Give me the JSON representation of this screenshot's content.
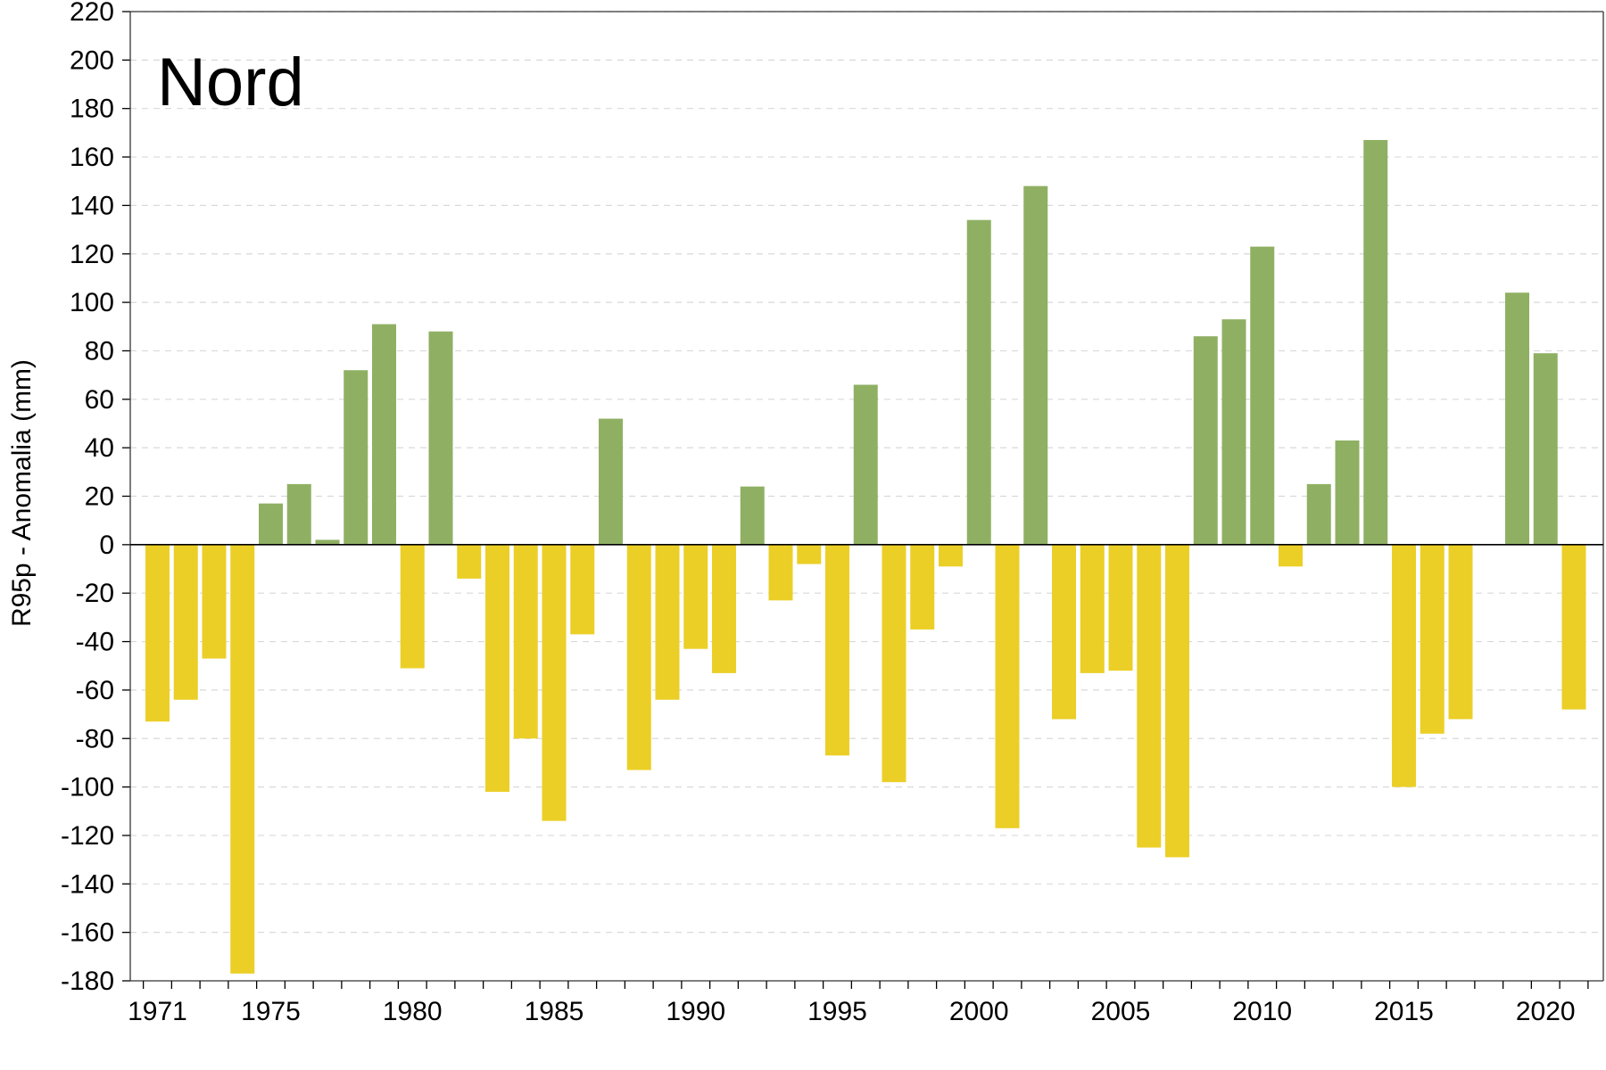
{
  "chart_data": {
    "type": "bar",
    "title": "Nord",
    "xlabel": "",
    "ylabel": "R95p - Anomalia (mm)",
    "ylim": [
      -180,
      220
    ],
    "yticks": [
      -180,
      -160,
      -140,
      -120,
      -100,
      -80,
      -60,
      -40,
      -20,
      0,
      20,
      40,
      60,
      80,
      100,
      120,
      140,
      160,
      180,
      200,
      220
    ],
    "xtick_labels": [
      "1971",
      "1975",
      "1980",
      "1985",
      "1990",
      "1995",
      "2000",
      "2005",
      "2010",
      "2015",
      "2020"
    ],
    "grid": "horizontal dashed",
    "legend": "none",
    "colors": {
      "positive": "#8fb063",
      "negative": "#ebcf27"
    },
    "categories": [
      1971,
      1972,
      1973,
      1974,
      1975,
      1976,
      1977,
      1978,
      1979,
      1980,
      1981,
      1982,
      1983,
      1984,
      1985,
      1986,
      1987,
      1988,
      1989,
      1990,
      1991,
      1992,
      1993,
      1994,
      1995,
      1996,
      1997,
      1998,
      1999,
      2000,
      2001,
      2002,
      2003,
      2004,
      2005,
      2006,
      2007,
      2008,
      2009,
      2010,
      2011,
      2012,
      2013,
      2014,
      2015,
      2016,
      2017,
      2018,
      2019,
      2020,
      2021
    ],
    "values": [
      -73,
      -64,
      -47,
      -177,
      17,
      25,
      2,
      72,
      91,
      -51,
      88,
      -14,
      -102,
      -80,
      -114,
      -37,
      52,
      -93,
      -64,
      -43,
      -53,
      24,
      -23,
      -8,
      -87,
      66,
      -98,
      -35,
      -9,
      134,
      -117,
      148,
      -72,
      -53,
      -52,
      -125,
      -129,
      86,
      93,
      123,
      -9,
      25,
      43,
      167,
      -100,
      -78,
      -72,
      0,
      104,
      79,
      -68
    ]
  }
}
